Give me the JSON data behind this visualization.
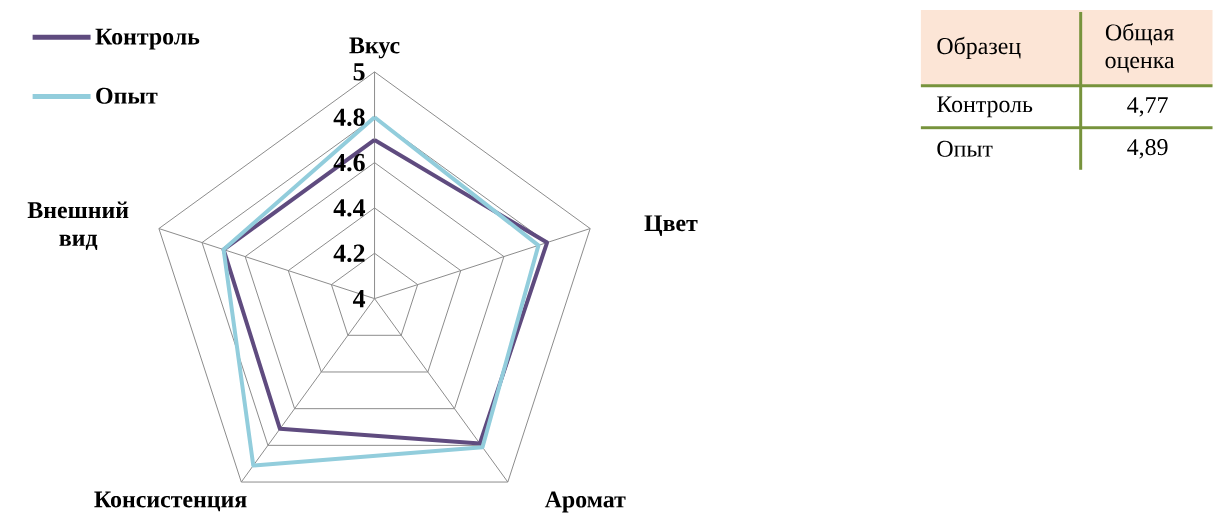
{
  "chart_data": [
    {
      "type": "radar",
      "categories": [
        "Вкус",
        "Цвет",
        "Аромат",
        "Консистенция",
        "Внешний вид"
      ],
      "ylim": [
        4,
        5
      ],
      "yticks": [
        4,
        4.2,
        4.4,
        4.6,
        4.8,
        5
      ],
      "grid": true,
      "legend": "top left",
      "series": [
        {
          "name": "Контроль",
          "color": "#5f4b7f",
          "values": [
            4.7,
            4.8,
            4.79,
            4.71,
            4.7
          ]
        },
        {
          "name": "Опыт",
          "color": "#92cddc",
          "values": [
            4.8,
            4.76,
            4.81,
            4.91,
            4.7
          ]
        }
      ]
    },
    {
      "type": "other",
      "xlabel": "Образец",
      "ylabel": "Общая оценка",
      "categories": [
        "Контроль",
        "Опыт"
      ],
      "value_labels": [
        "4,77",
        "4,89"
      ]
    }
  ]
}
